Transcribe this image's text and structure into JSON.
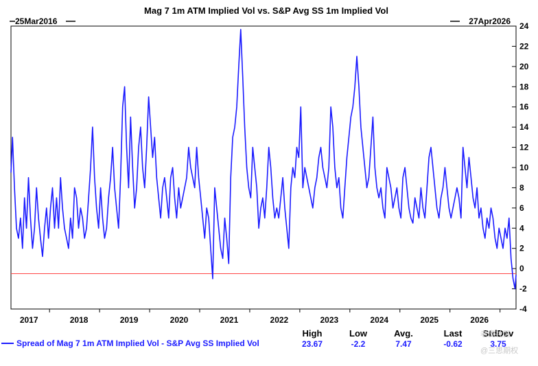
{
  "chart_data": {
    "type": "line",
    "title": "Mag 7 1m ATM Implied Vol vs. S&P Avg SS 1m Implied Vol",
    "start_date": "25Mar2016",
    "end_date": "27Apr2026",
    "x_start": 2016.23,
    "x_end": 2026.32,
    "xlim": [
      2016.23,
      2026.32
    ],
    "ylim": [
      -4,
      24
    ],
    "y_ticks": [
      -4,
      -2,
      0,
      2,
      4,
      6,
      8,
      10,
      12,
      14,
      16,
      18,
      20,
      22,
      24
    ],
    "x_ticks": [
      {
        "label": "2017",
        "x": 2017.0
      },
      {
        "label": "2018",
        "x": 2018.0
      },
      {
        "label": "2019",
        "x": 2019.0
      },
      {
        "label": "2020",
        "x": 2020.0
      },
      {
        "label": "2021",
        "x": 2021.0
      },
      {
        "label": "2022",
        "x": 2022.0
      },
      {
        "label": "2023",
        "x": 2023.0
      },
      {
        "label": "2024",
        "x": 2024.0
      },
      {
        "label": "2025",
        "x": 2025.0
      },
      {
        "label": "2026",
        "x": 2026.0
      }
    ],
    "reference_line": {
      "value": -0.5,
      "color": "#ff4444"
    },
    "series": [
      {
        "name": "Spread of Mag 7 1m ATM Implied Vol - S&P Avg SS Implied Vol",
        "color": "#1a1aff",
        "x": [
          2016.23,
          2016.26,
          2016.3,
          2016.34,
          2016.38,
          2016.42,
          2016.46,
          2016.5,
          2016.54,
          2016.58,
          2016.62,
          2016.66,
          2016.7,
          2016.74,
          2016.78,
          2016.82,
          2016.86,
          2016.9,
          2016.94,
          2016.98,
          2017.02,
          2017.06,
          2017.1,
          2017.14,
          2017.18,
          2017.22,
          2017.26,
          2017.3,
          2017.34,
          2017.38,
          2017.42,
          2017.46,
          2017.5,
          2017.54,
          2017.58,
          2017.62,
          2017.66,
          2017.7,
          2017.74,
          2017.78,
          2017.82,
          2017.86,
          2017.9,
          2017.94,
          2017.98,
          2018.02,
          2018.06,
          2018.1,
          2018.14,
          2018.18,
          2018.22,
          2018.26,
          2018.3,
          2018.34,
          2018.38,
          2018.42,
          2018.46,
          2018.5,
          2018.54,
          2018.58,
          2018.62,
          2018.66,
          2018.7,
          2018.74,
          2018.78,
          2018.82,
          2018.86,
          2018.9,
          2018.94,
          2018.98,
          2019.02,
          2019.06,
          2019.1,
          2019.14,
          2019.18,
          2019.22,
          2019.26,
          2019.3,
          2019.34,
          2019.38,
          2019.42,
          2019.46,
          2019.5,
          2019.54,
          2019.58,
          2019.62,
          2019.66,
          2019.7,
          2019.74,
          2019.78,
          2019.82,
          2019.86,
          2019.9,
          2019.94,
          2019.98,
          2020.02,
          2020.06,
          2020.1,
          2020.14,
          2020.18,
          2020.22,
          2020.26,
          2020.3,
          2020.34,
          2020.38,
          2020.42,
          2020.46,
          2020.5,
          2020.54,
          2020.58,
          2020.62,
          2020.66,
          2020.7,
          2020.74,
          2020.78,
          2020.82,
          2020.86,
          2020.9,
          2020.94,
          2020.98,
          2021.02,
          2021.06,
          2021.1,
          2021.14,
          2021.18,
          2021.22,
          2021.26,
          2021.3,
          2021.34,
          2021.38,
          2021.42,
          2021.46,
          2021.5,
          2021.54,
          2021.58,
          2021.62,
          2021.66,
          2021.7,
          2021.74,
          2021.78,
          2021.82,
          2021.86,
          2021.9,
          2021.94,
          2021.98,
          2022.02,
          2022.06,
          2022.1,
          2022.14,
          2022.18,
          2022.22,
          2022.26,
          2022.3,
          2022.34,
          2022.38,
          2022.42,
          2022.46,
          2022.5,
          2022.54,
          2022.58,
          2022.62,
          2022.66,
          2022.7,
          2022.74,
          2022.78,
          2022.82,
          2022.86,
          2022.9,
          2022.94,
          2022.98,
          2023.02,
          2023.06,
          2023.1,
          2023.14,
          2023.18,
          2023.22,
          2023.26,
          2023.3,
          2023.34,
          2023.38,
          2023.42,
          2023.46,
          2023.5,
          2023.54,
          2023.58,
          2023.62,
          2023.66,
          2023.7,
          2023.74,
          2023.78,
          2023.82,
          2023.86,
          2023.9,
          2023.94,
          2023.98,
          2024.02,
          2024.06,
          2024.1,
          2024.14,
          2024.18,
          2024.22,
          2024.26,
          2024.3,
          2024.34,
          2024.38,
          2024.42,
          2024.46,
          2024.5,
          2024.54,
          2024.58,
          2024.62,
          2024.66,
          2024.7,
          2024.74,
          2024.78,
          2024.82,
          2024.86,
          2024.9,
          2024.94,
          2024.98,
          2025.02,
          2025.06,
          2025.1,
          2025.14,
          2025.18,
          2025.22,
          2025.26,
          2025.3,
          2025.34,
          2025.38,
          2025.42,
          2025.46,
          2025.5,
          2025.54,
          2025.58,
          2025.62,
          2025.66,
          2025.7,
          2025.74,
          2025.78,
          2025.82,
          2025.86,
          2025.9,
          2025.94,
          2025.98,
          2026.02,
          2026.06,
          2026.1,
          2026.14,
          2026.18,
          2026.22,
          2026.26,
          2026.3,
          2026.32
        ],
        "values": [
          9.5,
          13,
          8,
          4,
          3,
          5,
          2,
          7,
          4,
          9,
          5,
          2,
          4,
          8,
          5,
          3,
          1.2,
          4,
          6,
          3,
          6,
          8,
          4,
          7,
          4,
          9,
          6,
          4,
          3,
          2,
          5,
          3,
          8,
          7,
          4,
          6,
          5,
          3,
          4,
          7,
          10,
          14,
          9,
          6,
          4,
          8,
          5,
          3,
          4,
          7,
          9,
          12,
          8,
          6,
          4,
          9,
          16,
          18,
          12,
          8,
          15,
          10,
          6,
          8,
          12,
          14,
          10,
          8,
          12,
          17,
          14,
          11,
          13,
          9,
          7,
          5,
          8,
          9,
          7,
          5,
          9,
          10,
          7,
          5,
          8,
          6,
          7,
          8,
          9,
          12,
          10,
          9,
          8,
          12,
          9,
          7,
          5,
          3,
          6,
          5,
          2,
          -1,
          8,
          6,
          4,
          2,
          1,
          5,
          3,
          0.5,
          9,
          13,
          14,
          16,
          20,
          23.67,
          19,
          14,
          10,
          8,
          7,
          12,
          10,
          8,
          4,
          6,
          7,
          5,
          8,
          12,
          10,
          7,
          5,
          6,
          5,
          7,
          9,
          6,
          4,
          2,
          8,
          10,
          9,
          12,
          11,
          16,
          8,
          10,
          9,
          8,
          7,
          6,
          8,
          9,
          11,
          12,
          10,
          9,
          8,
          10,
          16,
          14,
          10,
          8,
          9,
          6,
          5,
          8,
          11,
          13,
          15,
          16,
          18,
          21,
          18,
          14,
          12,
          10,
          8,
          9,
          12,
          15,
          10,
          8,
          7,
          8,
          6,
          5,
          10,
          9,
          8,
          6,
          7,
          8,
          6,
          5,
          9,
          10,
          8,
          6,
          5,
          4.5,
          7,
          6,
          5,
          8,
          6,
          5,
          8,
          11,
          12,
          10,
          8,
          6,
          5,
          7,
          8,
          10,
          8,
          6,
          5,
          6,
          7,
          8,
          7,
          5,
          12,
          10,
          8,
          11,
          9,
          7,
          6,
          8,
          5,
          6,
          4,
          3,
          5,
          4,
          6,
          5,
          3,
          2,
          4,
          3,
          2,
          4,
          3,
          5,
          1,
          -1,
          -2,
          -0.62
        ]
      }
    ],
    "stats": {
      "headers": [
        "High",
        "Low",
        "Avg.",
        "Last",
        "StdDev"
      ],
      "values": [
        "23.67",
        "-2.2",
        "7.47",
        "-0.62",
        "3.75"
      ]
    }
  },
  "legend": {
    "label": "Spread of Mag 7 1m ATM Implied Vol - S&P Avg SS Implied Vol"
  },
  "watermark": {
    "line1": "老虎社区",
    "line2": "@三思期权"
  }
}
